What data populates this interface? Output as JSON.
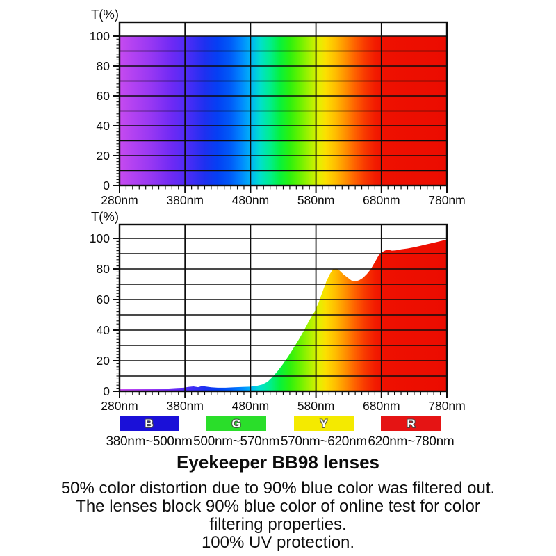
{
  "chart_data": [
    {
      "type": "area",
      "title": "",
      "xlabel": "",
      "ylabel": "T(%)",
      "xlim": [
        280,
        780
      ],
      "ylim": [
        0,
        100
      ],
      "grid": true,
      "x_ticks_nm": [
        280,
        380,
        480,
        580,
        680,
        780
      ],
      "x_tick_labels": [
        "280nm",
        "380nm",
        "480nm",
        "580nm",
        "680nm",
        "780nm"
      ],
      "y_ticks": [
        0,
        20,
        40,
        60,
        80,
        100
      ],
      "x": [
        280,
        780
      ],
      "values": [
        100,
        100
      ],
      "fill": "visible-spectrum-gradient"
    },
    {
      "type": "area",
      "title": "",
      "xlabel": "",
      "ylabel": "T(%)",
      "xlim": [
        280,
        780
      ],
      "ylim": [
        0,
        100
      ],
      "grid": true,
      "x_ticks_nm": [
        280,
        380,
        480,
        580,
        680,
        780
      ],
      "x_tick_labels": [
        "280nm",
        "380nm",
        "480nm",
        "580nm",
        "680nm",
        "780nm"
      ],
      "y_ticks": [
        0,
        20,
        40,
        60,
        80,
        100
      ],
      "fill": "visible-spectrum-gradient",
      "points": [
        [
          280,
          1.4
        ],
        [
          295,
          1.4
        ],
        [
          310,
          1.4
        ],
        [
          325,
          1.5
        ],
        [
          340,
          1.6
        ],
        [
          355,
          1.8
        ],
        [
          368,
          2.2
        ],
        [
          378,
          2.3
        ],
        [
          386,
          2.9
        ],
        [
          393,
          3.2
        ],
        [
          400,
          2.7
        ],
        [
          406,
          3.4
        ],
        [
          412,
          3.1
        ],
        [
          420,
          2.6
        ],
        [
          430,
          2.3
        ],
        [
          442,
          2.3
        ],
        [
          455,
          2.6
        ],
        [
          468,
          2.8
        ],
        [
          480,
          3.0
        ],
        [
          490,
          3.6
        ],
        [
          498,
          4.4
        ],
        [
          506,
          6.2
        ],
        [
          514,
          9.5
        ],
        [
          522,
          13.5
        ],
        [
          530,
          18.0
        ],
        [
          538,
          23.0
        ],
        [
          546,
          28.5
        ],
        [
          554,
          34.0
        ],
        [
          562,
          40.0
        ],
        [
          570,
          46.5
        ],
        [
          578,
          52.0
        ],
        [
          584,
          58.0
        ],
        [
          590,
          65.0
        ],
        [
          596,
          72.0
        ],
        [
          601,
          76.5
        ],
        [
          606,
          80.0
        ],
        [
          611,
          80.3
        ],
        [
          616,
          79.0
        ],
        [
          622,
          76.5
        ],
        [
          628,
          74.5
        ],
        [
          634,
          72.5
        ],
        [
          640,
          71.8
        ],
        [
          646,
          72.6
        ],
        [
          652,
          74.2
        ],
        [
          658,
          76.8
        ],
        [
          664,
          80.0
        ],
        [
          670,
          84.5
        ],
        [
          676,
          89.0
        ],
        [
          681,
          91.0
        ],
        [
          686,
          92.2
        ],
        [
          691,
          92.5
        ],
        [
          696,
          92.0
        ],
        [
          702,
          92.2
        ],
        [
          710,
          92.8
        ],
        [
          720,
          93.4
        ],
        [
          730,
          94.2
        ],
        [
          740,
          95.2
        ],
        [
          750,
          96.2
        ],
        [
          760,
          97.2
        ],
        [
          770,
          98.2
        ],
        [
          780,
          99.2
        ]
      ]
    }
  ],
  "spectrum_gradient_stops": [
    [
      0,
      "#c64bef"
    ],
    [
      5,
      "#ae40f2"
    ],
    [
      10,
      "#9537f3"
    ],
    [
      16,
      "#6e2af5"
    ],
    [
      21,
      "#4a2cf6"
    ],
    [
      26,
      "#1e30f0"
    ],
    [
      30,
      "#0440f4"
    ],
    [
      34,
      "#005cf8"
    ],
    [
      37,
      "#0084fe"
    ],
    [
      40,
      "#00b2f8"
    ],
    [
      43,
      "#00e0cc"
    ],
    [
      46,
      "#00ee8e"
    ],
    [
      49,
      "#06f23c"
    ],
    [
      52,
      "#2cf10e"
    ],
    [
      55,
      "#66f200"
    ],
    [
      58,
      "#a6f200"
    ],
    [
      61,
      "#e4ef00"
    ],
    [
      63,
      "#fcdf00"
    ],
    [
      66,
      "#ffbc00"
    ],
    [
      69,
      "#ff9000"
    ],
    [
      72,
      "#fe6000"
    ],
    [
      75,
      "#f83800"
    ],
    [
      78,
      "#f21c00"
    ],
    [
      81,
      "#ee1000"
    ],
    [
      100,
      "#eb0c00"
    ]
  ],
  "legend": {
    "items": [
      {
        "letter": "B",
        "color": "#1a10d8",
        "range": "380nm~500nm"
      },
      {
        "letter": "G",
        "color": "#2ade2a",
        "range": "500nm~570nm"
      },
      {
        "letter": "Y",
        "color": "#f4ea00",
        "range": "570nm~620nm"
      },
      {
        "letter": "R",
        "color": "#e51414",
        "range": "620nm~780nm"
      }
    ]
  },
  "caption": {
    "title": "Eyekeeper BB98 lenses",
    "lines": [
      "50% color distortion due to 90% blue color was filtered out.",
      "The lenses block 90% blue color of online test for color",
      "filtering properties.",
      "100% UV protection."
    ]
  }
}
